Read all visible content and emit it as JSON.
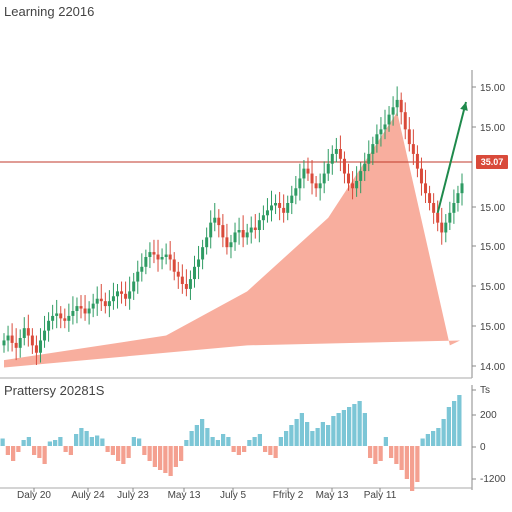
{
  "chart_data": [
    {
      "type": "candlestick",
      "title": "Learning 22016",
      "y_ticks": [
        "15.00",
        "15.00",
        "15.00",
        "15.00",
        "15.00",
        "15.00",
        "15.00",
        "14.00"
      ],
      "price_line": {
        "label": "35.07",
        "level": 0.0
      },
      "colors": {
        "up": "#2e9b63",
        "down": "#d94a3a",
        "fill": "#f7a593",
        "line": "#c0392b",
        "arrow": "#1f8a4c"
      },
      "series": {
        "x": [
          0,
          1,
          2,
          3,
          4,
          5,
          6,
          7,
          8,
          9,
          10,
          11,
          12,
          13,
          14,
          15,
          16,
          17,
          18,
          19,
          20,
          21,
          22,
          23,
          24,
          25,
          26,
          27,
          28,
          29,
          30,
          31,
          32,
          33,
          34,
          35,
          36,
          37,
          38,
          39,
          40,
          41,
          42,
          43,
          44,
          45,
          46,
          47,
          48,
          49,
          50,
          51,
          52,
          53,
          54,
          55,
          56,
          57,
          58,
          59,
          60,
          61,
          62,
          63,
          64,
          65,
          66,
          67,
          68,
          69,
          70,
          71,
          72,
          73,
          74,
          75,
          76,
          77,
          78,
          79,
          80,
          81,
          82,
          83,
          84,
          85,
          86,
          87,
          88,
          89,
          90,
          91,
          92,
          93,
          94,
          95,
          96,
          97,
          98,
          99,
          100,
          101,
          102,
          103,
          104,
          105,
          106,
          107,
          108,
          109,
          110,
          111,
          112,
          113
        ],
        "close": [
          0.1,
          0.12,
          0.09,
          0.07,
          0.11,
          0.15,
          0.12,
          0.08,
          0.05,
          0.1,
          0.14,
          0.18,
          0.2,
          0.21,
          0.19,
          0.18,
          0.2,
          0.22,
          0.24,
          0.23,
          0.21,
          0.23,
          0.25,
          0.27,
          0.26,
          0.24,
          0.26,
          0.28,
          0.3,
          0.29,
          0.27,
          0.3,
          0.34,
          0.38,
          0.4,
          0.44,
          0.46,
          0.45,
          0.43,
          0.44,
          0.45,
          0.43,
          0.38,
          0.36,
          0.33,
          0.31,
          0.35,
          0.4,
          0.43,
          0.48,
          0.52,
          0.58,
          0.6,
          0.57,
          0.52,
          0.48,
          0.5,
          0.54,
          0.55,
          0.52,
          0.54,
          0.56,
          0.55,
          0.59,
          0.61,
          0.63,
          0.65,
          0.66,
          0.64,
          0.62,
          0.66,
          0.69,
          0.72,
          0.76,
          0.8,
          0.78,
          0.74,
          0.72,
          0.74,
          0.78,
          0.82,
          0.86,
          0.88,
          0.84,
          0.78,
          0.74,
          0.72,
          0.75,
          0.79,
          0.82,
          0.86,
          0.9,
          0.94,
          0.96,
          0.98,
          1.02,
          1.05,
          1.08,
          1.03,
          0.96,
          0.9,
          0.86,
          0.8,
          0.74,
          0.7,
          0.66,
          0.62,
          0.58,
          0.54,
          0.58,
          0.62,
          0.66,
          0.7,
          0.74
        ]
      },
      "arrow": {
        "from": [
          107,
          0.62
        ],
        "to": [
          113,
          1.25
        ]
      }
    },
    {
      "type": "bar",
      "title": "Prattersy 20281S",
      "y_ticks": [
        "Ts",
        "200",
        "0",
        "-1200"
      ],
      "x_ticks": [
        "Daly 20",
        "Auly 24",
        "July 23",
        "May 13",
        "July 5",
        "Ffrity 2",
        "May 13",
        "Paly 11"
      ],
      "colors": {
        "pos": "#7cc6d6",
        "neg": "#f4a090"
      },
      "values": [
        0.05,
        -0.06,
        -0.1,
        -0.04,
        0.04,
        0.06,
        -0.06,
        -0.08,
        -0.12,
        0.03,
        0.04,
        0.06,
        -0.04,
        -0.06,
        0.08,
        0.12,
        0.1,
        0.06,
        0.07,
        0.05,
        -0.04,
        -0.06,
        -0.1,
        -0.12,
        -0.08,
        0.06,
        0.05,
        -0.06,
        -0.1,
        -0.14,
        -0.16,
        -0.18,
        -0.2,
        -0.14,
        -0.1,
        0.04,
        0.1,
        0.14,
        0.18,
        0.12,
        0.06,
        0.04,
        0.08,
        0.06,
        -0.04,
        -0.06,
        -0.04,
        0.04,
        0.06,
        0.08,
        -0.04,
        -0.06,
        -0.08,
        0.06,
        0.1,
        0.14,
        0.18,
        0.22,
        0.16,
        0.1,
        0.12,
        0.16,
        0.14,
        0.2,
        0.22,
        0.24,
        0.26,
        0.28,
        0.3,
        0.22,
        -0.08,
        -0.12,
        -0.1,
        0.06,
        -0.08,
        -0.12,
        -0.16,
        -0.22,
        -0.3,
        -0.24,
        0.05,
        0.08,
        0.1,
        0.12,
        0.18,
        0.26,
        0.3,
        0.34
      ]
    }
  ]
}
